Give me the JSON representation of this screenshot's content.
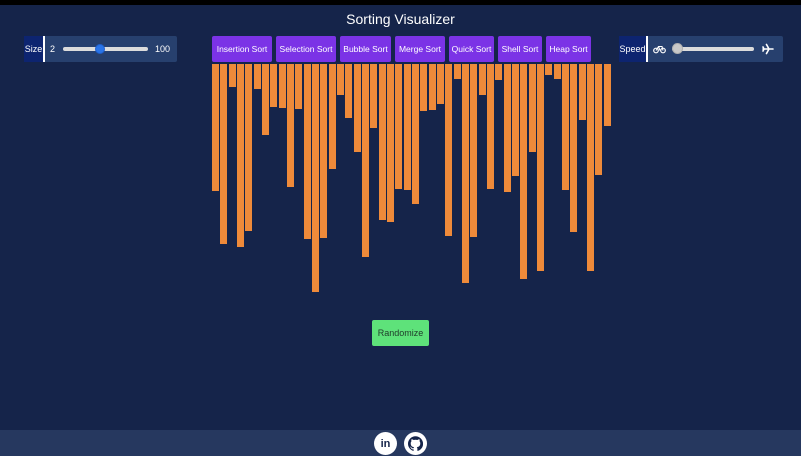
{
  "app": {
    "title": "Sorting Visualizer"
  },
  "size_control": {
    "label": "Size",
    "min_label": "2",
    "max_label": "100",
    "value_fraction": 0.42
  },
  "algorithms": [
    {
      "label": "Insertion Sort"
    },
    {
      "label": "Selection Sort"
    },
    {
      "label": "Bubble Sort"
    },
    {
      "label": "Merge Sort"
    },
    {
      "label": "Quick Sort"
    },
    {
      "label": "Shell Sort"
    },
    {
      "label": "Heap Sort"
    }
  ],
  "speed_control": {
    "label": "Speed",
    "slow_icon": "bicycle-icon",
    "fast_icon": "airplane-icon",
    "value_fraction": 0.0
  },
  "array": {
    "bar_color": "#ee8a3a",
    "values": [
      127,
      180,
      23,
      183,
      167,
      25,
      71,
      43,
      44,
      123,
      45,
      175,
      228,
      174,
      105,
      31,
      54,
      88,
      193,
      64,
      156,
      158,
      125,
      126,
      140,
      47,
      46,
      40,
      172,
      15,
      219,
      173,
      31,
      125,
      16,
      128,
      112,
      215,
      88,
      207,
      11,
      15,
      126,
      168,
      56,
      207,
      111,
      62
    ]
  },
  "randomize": {
    "label": "Randomize",
    "color": "#5ee27a"
  },
  "footer": {
    "links": [
      {
        "icon": "linkedin-icon",
        "label": "in"
      },
      {
        "icon": "github-icon"
      }
    ]
  },
  "colors": {
    "background": "#15244a",
    "accent": "#7b33e6",
    "panel": "#27406e",
    "label_bg": "#0d2470"
  }
}
